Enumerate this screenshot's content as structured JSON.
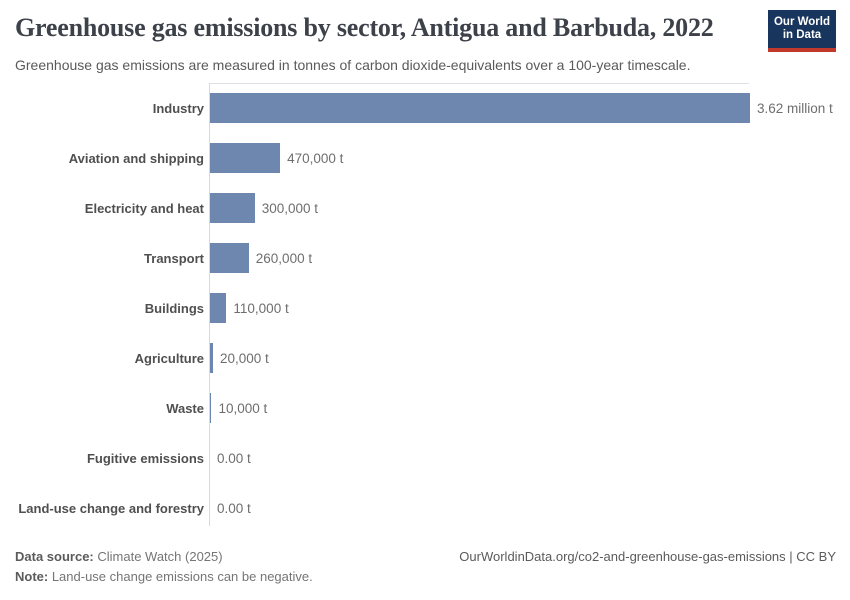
{
  "header": {
    "title": "Greenhouse gas emissions by sector, Antigua and Barbuda, 2022",
    "subtitle": "Greenhouse gas emissions are measured in tonnes of carbon dioxide-equivalents over a 100-year timescale.",
    "logo": {
      "line1": "Our World",
      "line2": "in Data"
    }
  },
  "chart_data": {
    "type": "bar",
    "orientation": "horizontal",
    "title": "Greenhouse gas emissions by sector, Antigua and Barbuda, 2022",
    "unit": "t",
    "categories": [
      "Industry",
      "Aviation and shipping",
      "Electricity and heat",
      "Transport",
      "Buildings",
      "Agriculture",
      "Waste",
      "Fugitive emissions",
      "Land-use change and forestry"
    ],
    "values": [
      3620000,
      470000,
      300000,
      260000,
      110000,
      20000,
      10000,
      0,
      0
    ],
    "value_labels": [
      "3.62 million t",
      "470,000 t",
      "300,000 t",
      "260,000 t",
      "110,000 t",
      "20,000 t",
      "10,000 t",
      "0.00 t",
      "0.00 t"
    ],
    "xlim": [
      0,
      3620000
    ],
    "grid": "off",
    "legend": "none",
    "bar_color": "#6d87ae",
    "axis_color": "#d9d9d9"
  },
  "footer": {
    "source_label": "Data source:",
    "source_value": " Climate Watch (2025)",
    "note_label": "Note:",
    "note_value": " Land-use change emissions can be negative.",
    "link": "OurWorldinData.org/co2-and-greenhouse-gas-emissions | CC BY"
  },
  "colors": {
    "bar": "#6d87ae",
    "logo_background": "#18355e",
    "logo_accent": "#c0392b",
    "title_text": "#3d4149",
    "body_text": "#5a5a5a"
  }
}
